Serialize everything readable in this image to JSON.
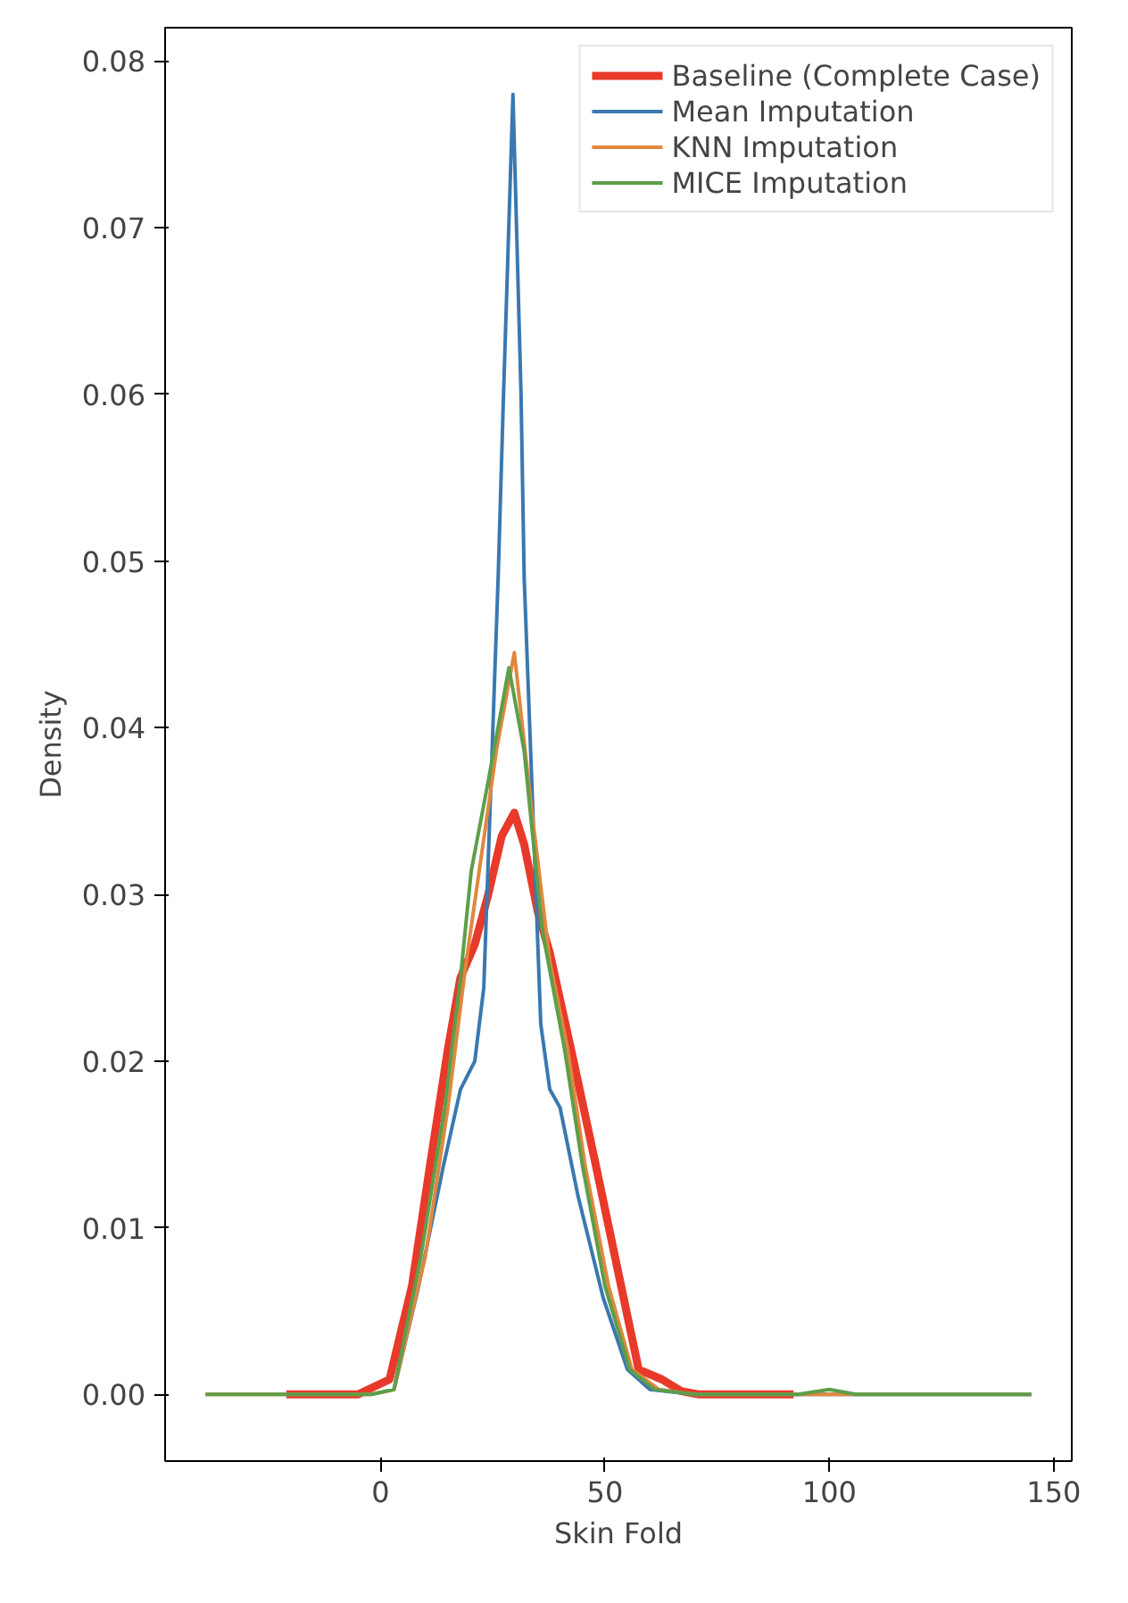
{
  "chart_data": {
    "type": "line",
    "xlabel": "Skin Fold",
    "ylabel": "Density",
    "xlim": [
      -48,
      154
    ],
    "ylim": [
      -0.004,
      0.082
    ],
    "xticks": [
      0,
      50,
      100,
      150
    ],
    "yticks": [
      {
        "value": 0,
        "label": "0.00"
      },
      {
        "value": 0.01,
        "label": "0.01"
      },
      {
        "value": 0.02,
        "label": "0.02"
      },
      {
        "value": 0.03,
        "label": "0.03"
      },
      {
        "value": 0.04,
        "label": "0.04"
      },
      {
        "value": 0.05,
        "label": "0.05"
      },
      {
        "value": 0.06,
        "label": "0.06"
      },
      {
        "value": 0.07,
        "label": "0.07"
      },
      {
        "value": 0.08,
        "label": "0.08"
      }
    ],
    "grid": false,
    "legend": "top right",
    "marker": "none",
    "line_style": "solid",
    "series": [
      {
        "name": "Baseline (Complete Case)",
        "color": "#e8392a",
        "x": [
          -21,
          -5,
          2,
          7,
          11,
          15,
          17.8,
          21,
          24,
          27,
          29.8,
          32,
          35,
          37.7,
          43,
          48,
          53.6,
          57.5,
          62.7,
          67,
          71,
          92
        ],
        "values": [
          0,
          0,
          0.0009,
          0.0065,
          0.0137,
          0.0207,
          0.025,
          0.027,
          0.03,
          0.0335,
          0.0349,
          0.033,
          0.029,
          0.0265,
          0.02,
          0.0137,
          0.0065,
          0.0015,
          0.0009,
          0.0002,
          0,
          0
        ]
      },
      {
        "name": "Mean Imputation",
        "color": "#3a78b0",
        "x": [
          3,
          8.5,
          14,
          17.8,
          21,
          23,
          26.2,
          27.4,
          29.5,
          31.3,
          32,
          35.7,
          37.7,
          40,
          44,
          49.6,
          55,
          60,
          70,
          145
        ],
        "values": [
          0.0003,
          0.0065,
          0.0137,
          0.0183,
          0.02,
          0.0244,
          0.049,
          0.06,
          0.078,
          0.06,
          0.049,
          0.0222,
          0.0183,
          0.0172,
          0.0119,
          0.0058,
          0.0015,
          0.0003,
          0,
          0
        ]
      },
      {
        "name": "KNN Imputation",
        "color": "#e0883e",
        "x": [
          -39,
          -2,
          3,
          10,
          15,
          19,
          25.8,
          29.8,
          33.7,
          37.7,
          41.7,
          45.6,
          50.8,
          56,
          62,
          70,
          145
        ],
        "values": [
          0,
          0,
          0.0003,
          0.0083,
          0.0172,
          0.0258,
          0.0386,
          0.0445,
          0.035,
          0.026,
          0.0207,
          0.0137,
          0.0065,
          0.0015,
          0.0003,
          0,
          0
        ]
      },
      {
        "name": "MICE Imputation",
        "color": "#5d9e4a",
        "x": [
          -39,
          -2,
          3,
          9,
          14.3,
          17.8,
          20.2,
          24,
          28.6,
          32,
          36,
          41,
          45,
          50,
          55.5,
          61,
          70,
          93,
          100,
          106,
          145
        ],
        "values": [
          0,
          0,
          0.0003,
          0.0083,
          0.0172,
          0.025,
          0.0314,
          0.0368,
          0.0436,
          0.0386,
          0.0279,
          0.0207,
          0.0137,
          0.0065,
          0.0015,
          0.0003,
          0,
          0,
          0.0003,
          0,
          0
        ]
      }
    ]
  }
}
